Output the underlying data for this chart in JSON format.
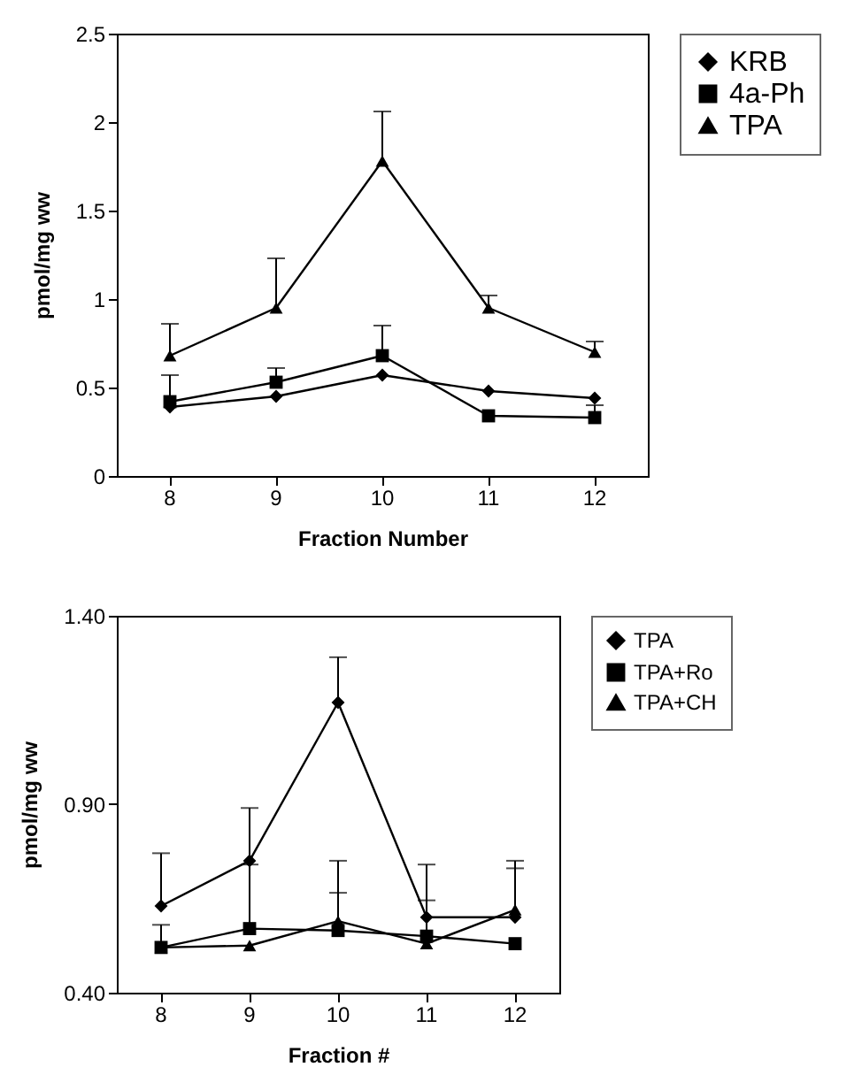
{
  "chart_data": [
    {
      "type": "line",
      "xlabel": "Fraction Number",
      "ylabel": "pmol/mg ww",
      "categories": [
        "8",
        "9",
        "10",
        "11",
        "12"
      ],
      "ylim": [
        0,
        2.5
      ],
      "yticks": [
        0,
        0.5,
        1,
        1.5,
        2,
        2.5
      ],
      "legend": "right",
      "grid": false,
      "series": [
        {
          "name": "KRB",
          "color": "#000000",
          "marker": "diamond",
          "values": [
            0.39,
            0.45,
            0.57,
            0.48,
            0.44
          ]
        },
        {
          "name": "4a-Ph",
          "color": "#000000",
          "marker": "square",
          "values": [
            0.42,
            0.53,
            0.68,
            0.34,
            0.33
          ],
          "errors": [
            [
              0.42,
              0.57
            ],
            [
              0.53,
              0.61
            ],
            [
              0.68,
              0.85
            ],
            null,
            [
              0.33,
              0.4
            ]
          ]
        },
        {
          "name": "TPA",
          "color": "#000000",
          "marker": "triangle",
          "values": [
            0.68,
            0.95,
            1.78,
            0.95,
            0.7
          ],
          "errors": [
            [
              0.68,
              0.86
            ],
            [
              0.95,
              1.23
            ],
            [
              1.78,
              2.06
            ],
            [
              0.95,
              1.02
            ],
            [
              0.7,
              0.76
            ]
          ]
        }
      ]
    },
    {
      "type": "line",
      "xlabel": "Fraction #",
      "ylabel": "pmol/mg ww",
      "categories": [
        "8",
        "9",
        "10",
        "11",
        "12"
      ],
      "ylim": [
        0.4,
        1.4
      ],
      "yticks": [
        {
          "value": 0.4,
          "label": "0.40"
        },
        {
          "value": 0.9,
          "label": "0.90"
        },
        {
          "value": 1.4,
          "label": "1.40"
        }
      ],
      "legend": "right",
      "grid": false,
      "series": [
        {
          "name": "TPA",
          "color": "#000000",
          "marker": "diamond",
          "values": [
            0.63,
            0.75,
            1.17,
            0.6,
            0.6
          ],
          "errors": [
            [
              0.63,
              0.77
            ],
            [
              0.75,
              0.89
            ],
            [
              1.17,
              1.29
            ],
            [
              0.6,
              0.74
            ],
            [
              0.6,
              0.75
            ]
          ]
        },
        {
          "name": "TPA+Ro",
          "color": "#000000",
          "marker": "square",
          "values": [
            0.52,
            0.57,
            0.565,
            0.55,
            0.53
          ],
          "errors": [
            [
              0.52,
              0.58
            ],
            [
              0.57,
              0.74
            ],
            [
              0.565,
              0.665
            ],
            null,
            null
          ]
        },
        {
          "name": "TPA+CH",
          "color": "#000000",
          "marker": "triangle",
          "values": [
            0.52,
            0.525,
            0.59,
            0.53,
            0.62
          ],
          "errors": [
            null,
            null,
            [
              0.59,
              0.75
            ],
            [
              0.53,
              0.645
            ],
            [
              0.62,
              0.73
            ]
          ]
        }
      ]
    }
  ]
}
